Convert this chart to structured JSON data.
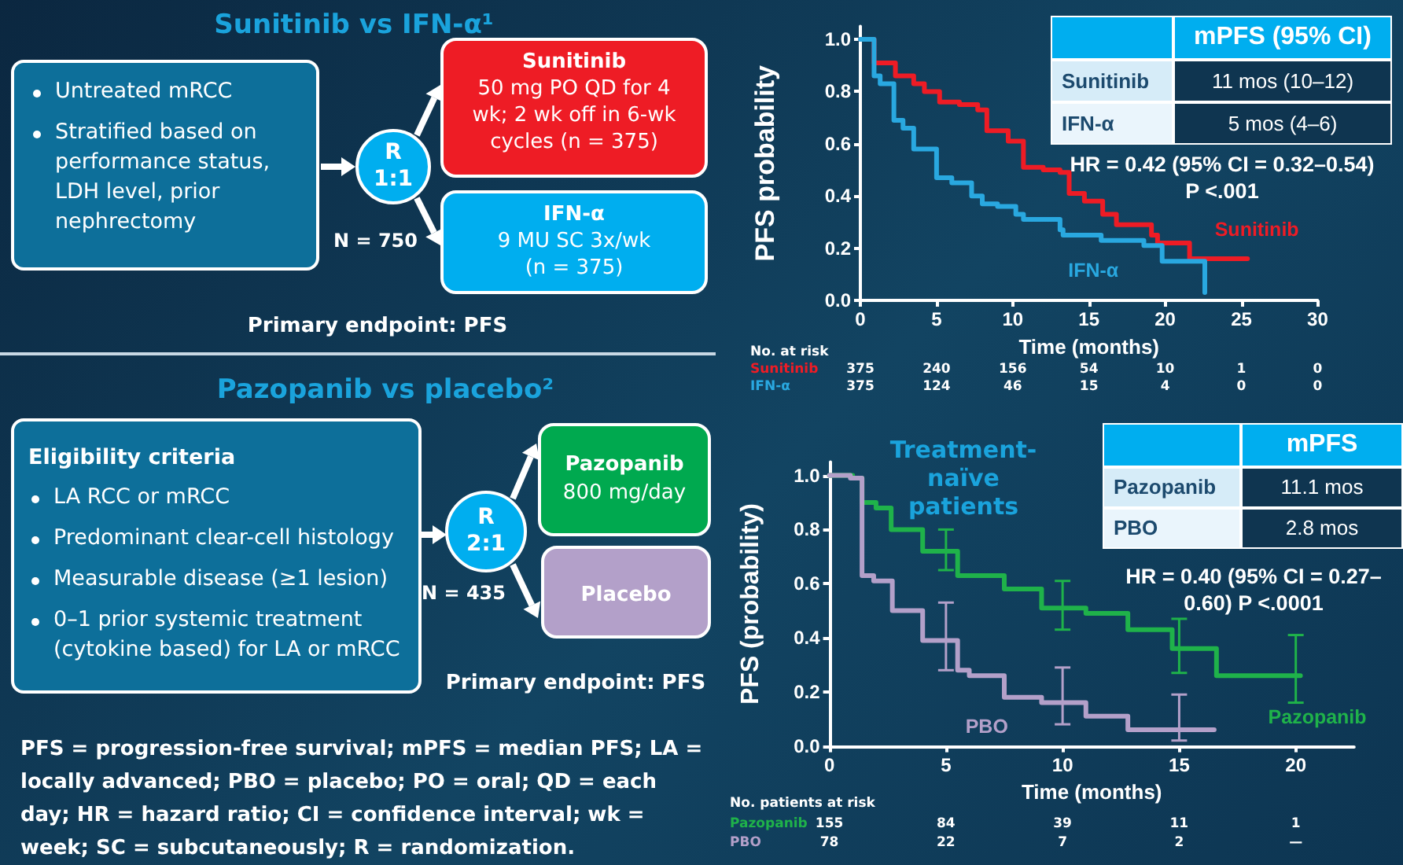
{
  "chart_data": [
    {
      "type": "other",
      "title": "Sunitinib vs IFN-α¹",
      "annotations": [
        "Untreated mRCC",
        "Stratified based on performance status, LDH level, prior nephrectomy",
        "R",
        "1:1",
        "N = 750",
        "Sunitinib",
        "50 mg PO QD for 4 wk; 2 wk off in 6-wk cycles (n = 375)",
        "IFN-α",
        "9 MU SC 3x/wk (n = 375)",
        "Primary endpoint: PFS"
      ]
    },
    {
      "type": "step",
      "xlabel": "Time (months)",
      "ylabel": "PFS probability",
      "xlim": [
        0,
        30
      ],
      "ylim": [
        0,
        1.05
      ],
      "xticks": [
        0,
        5,
        10,
        15,
        20,
        25,
        30
      ],
      "yticks": [
        {
          "value": 0,
          "label": "0.0"
        },
        {
          "value": 0.2,
          "label": "0.2"
        },
        {
          "value": 0.4,
          "label": "0.4"
        },
        {
          "value": 0.6,
          "label": "0.6"
        },
        {
          "value": 0.8,
          "label": "0.8"
        },
        {
          "value": 1,
          "label": "1.0"
        }
      ],
      "legend": false,
      "grid": false,
      "series": [
        {
          "name": "Sunitinib",
          "color": "#ee1c25",
          "x": [
            0,
            0.9,
            2.3,
            3.5,
            4.2,
            5.2,
            6.5,
            7.7,
            8.3,
            9.7,
            10.7,
            12.0,
            13.1,
            13.7,
            14.7,
            15.9,
            16.8,
            19.1,
            19.5,
            21.6,
            25.4
          ],
          "values": [
            1.0,
            0.91,
            0.86,
            0.83,
            0.8,
            0.76,
            0.75,
            0.73,
            0.65,
            0.61,
            0.51,
            0.5,
            0.49,
            0.41,
            0.38,
            0.33,
            0.29,
            0.25,
            0.22,
            0.16,
            0.16
          ]
        },
        {
          "name": "IFN-α",
          "color": "#29a8e0",
          "x": [
            0,
            0.9,
            1.3,
            2.2,
            2.8,
            3.5,
            5.0,
            6.0,
            7.3,
            8.0,
            9.0,
            10.2,
            10.7,
            13.1,
            13.3,
            15.8,
            18.6,
            19.8,
            22.6,
            22.6
          ],
          "values": [
            1.0,
            0.86,
            0.83,
            0.69,
            0.66,
            0.58,
            0.47,
            0.45,
            0.4,
            0.37,
            0.36,
            0.33,
            0.31,
            0.27,
            0.25,
            0.23,
            0.21,
            0.15,
            0.15,
            0.03
          ]
        }
      ],
      "annotations": [
        "mPFS (95% CI)",
        "Sunitinib",
        "11 mos (10–12)",
        "IFN-α",
        "5 mos (4–6)",
        "HR = 0.42 (95% CI = 0.32–0.54)",
        "P <.001",
        "No. at risk",
        "Sunitinib",
        "375",
        "240",
        "156",
        "54",
        "10",
        "1",
        "0",
        "IFN-α",
        "375",
        "124",
        "46",
        "15",
        "4",
        "0",
        "0"
      ]
    },
    {
      "type": "other",
      "title": "Pazopanib vs placebo²",
      "annotations": [
        "Eligibility criteria",
        "LA RCC or mRCC",
        "Predominant clear-cell histology",
        "Measurable disease (≥1 lesion)",
        "0–1 prior systemic treatment (cytokine based) for LA or mRCC",
        "R",
        "2:1",
        "N = 435",
        "Pazopanib",
        "800 mg/day",
        "Placebo",
        "Primary endpoint: PFS"
      ]
    },
    {
      "type": "step",
      "title": "Treatment-naïve patients",
      "xlabel": "Time (months)",
      "ylabel": "PFS (probability)",
      "xlim": [
        0,
        22.5
      ],
      "ylim": [
        0,
        1.05
      ],
      "xticks": [
        0,
        5,
        10,
        15,
        20
      ],
      "yticks": [
        {
          "value": 0,
          "label": "0.0"
        },
        {
          "value": 0.2,
          "label": "0.2"
        },
        {
          "value": 0.4,
          "label": "0.4"
        },
        {
          "value": 0.6,
          "label": "0.6"
        },
        {
          "value": 0.8,
          "label": "0.8"
        },
        {
          "value": 1,
          "label": "1.0"
        }
      ],
      "legend": false,
      "grid": false,
      "series": [
        {
          "name": "Pazopanib",
          "color": "#1fb24a",
          "x": [
            0,
            1.0,
            1.4,
            2.0,
            2.65,
            4.0,
            5.0,
            5.5,
            7.5,
            9.1,
            10.0,
            11.0,
            12.8,
            14.7,
            15.0,
            16.6,
            20.0,
            20.2
          ],
          "values": [
            1.0,
            0.99,
            0.9,
            0.88,
            0.8,
            0.72,
            0.72,
            0.63,
            0.58,
            0.51,
            0.51,
            0.49,
            0.43,
            0.36,
            0.36,
            0.26,
            0.26,
            0.26
          ],
          "errors": [
            null,
            null,
            null,
            null,
            null,
            null,
            [
              0.65,
              0.8
            ],
            null,
            null,
            null,
            [
              0.43,
              0.61
            ],
            null,
            null,
            null,
            [
              0.27,
              0.47
            ],
            null,
            [
              0.16,
              0.41
            ],
            null
          ]
        },
        {
          "name": "PBO",
          "color": "#b3a0c9",
          "x": [
            0,
            0.9,
            1.4,
            1.9,
            2.7,
            4.0,
            5.0,
            5.5,
            6.0,
            7.5,
            9.1,
            10.0,
            11.0,
            12.8,
            15.0,
            16.5
          ],
          "values": [
            1.0,
            0.99,
            0.63,
            0.61,
            0.5,
            0.39,
            0.39,
            0.28,
            0.26,
            0.18,
            0.16,
            0.16,
            0.11,
            0.06,
            0.06,
            0.06
          ],
          "errors": [
            null,
            null,
            null,
            null,
            null,
            null,
            [
              0.28,
              0.53
            ],
            null,
            null,
            null,
            null,
            [
              0.08,
              0.29
            ],
            null,
            null,
            [
              0.02,
              0.19
            ],
            null
          ]
        }
      ],
      "annotations": [
        "mPFS",
        "Pazopanib",
        "11.1 mos",
        "PBO",
        "2.8 mos",
        "HR = 0.40 (95% CI = 0.27–0.60) P <.0001",
        "No. patients at risk",
        "Pazopanib",
        "155",
        "84",
        "39",
        "11",
        "1",
        "PBO",
        "78",
        "22",
        "7",
        "2",
        "—"
      ]
    },
    {
      "type": "other",
      "annotations": [
        "PFS = progression-free survival; mPFS = median PFS; LA = locally advanced; PBO = placebo; PO = oral; QD = each day; HR = hazard ratio; CI = confidence interval; wk = week; SC = subcutaneously; R = randomization."
      ]
    }
  ]
}
